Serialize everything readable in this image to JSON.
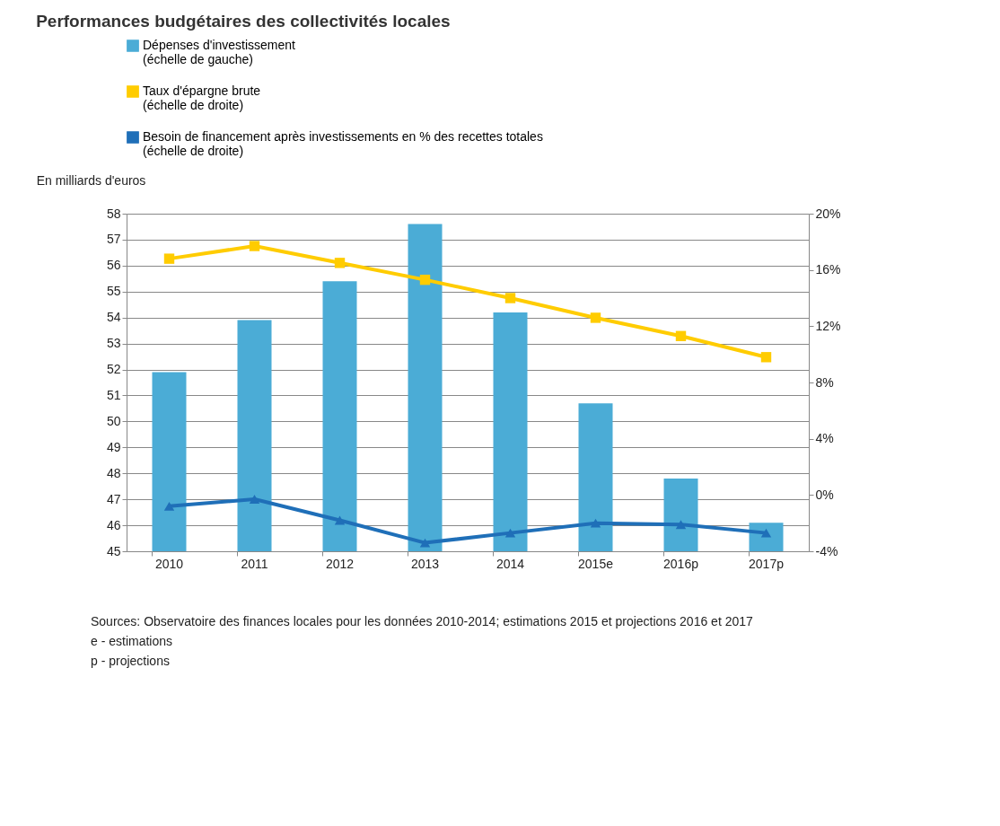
{
  "chart_data": {
    "type": "bar",
    "title": "Performances budgétaires des collectivités locales",
    "categories": [
      "2010",
      "2011",
      "2012",
      "2013",
      "2014",
      "2015e",
      "2016p",
      "2017p"
    ],
    "series": [
      {
        "name": "Dépenses d'investissement\n(échelle de gauche)",
        "color": "#4bacd6",
        "values": [
          51.9,
          53.9,
          55.4,
          57.6,
          54.2,
          50.7,
          47.8,
          46.1
        ]
      },
      {
        "name": "Taux d'épargne brute\n(échelle de droite)",
        "type": "line",
        "axis": "y2",
        "marker": "square",
        "color": "#ffcc00",
        "values": [
          16.8,
          17.7,
          16.5,
          15.3,
          14.0,
          12.6,
          11.3,
          9.8
        ]
      },
      {
        "name": "Besoin de financement après investissements en % des recettes totales\n(échelle de droite)",
        "type": "line",
        "axis": "y2",
        "marker": "triangle",
        "color": "#1f6fb8",
        "values": [
          -0.8,
          -0.3,
          -1.8,
          -3.4,
          -2.7,
          -2.0,
          -2.1,
          -2.7
        ]
      }
    ],
    "ylabel": "En milliards d'euros",
    "ylim": [
      45,
      58
    ],
    "yticks": [
      45,
      46,
      47,
      48,
      49,
      50,
      51,
      52,
      53,
      54,
      55,
      56,
      57,
      58
    ],
    "y2lim": [
      -4,
      20
    ],
    "y2ticks": [
      {
        "value": -4,
        "label": "-4%"
      },
      {
        "value": 0,
        "label": "0%"
      },
      {
        "value": 4,
        "label": "4%"
      },
      {
        "value": 8,
        "label": "8%"
      },
      {
        "value": 12,
        "label": "12%"
      },
      {
        "value": 16,
        "label": "16%"
      },
      {
        "value": 20,
        "label": "20%"
      }
    ],
    "grid": "y",
    "legend": "top",
    "annotations": [
      "Sources: Observatoire des finances locales pour les données 2010-2014;  estimations 2015 et projections 2016 et 2017",
      "e - estimations",
      "p -  projections"
    ]
  }
}
